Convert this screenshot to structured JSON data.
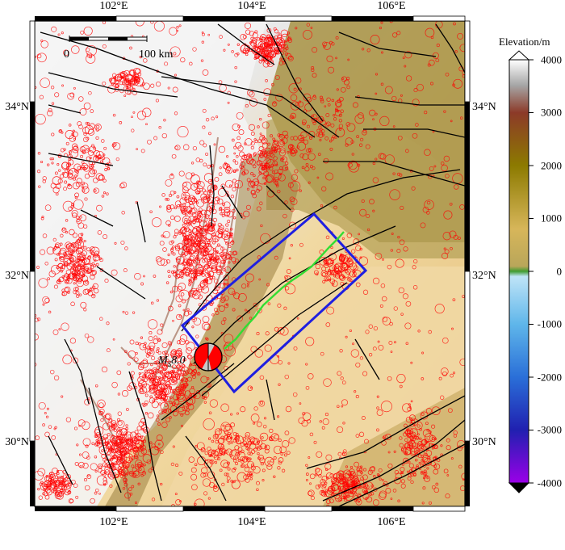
{
  "map": {
    "lon_labels": [
      "102°E",
      "104°E",
      "106°E"
    ],
    "lat_labels": [
      "34°N",
      "32°N",
      "30°N"
    ],
    "scale_bar": {
      "start": "0",
      "end": "100 km"
    },
    "event_label": {
      "prefix": "M",
      "subscript": "S",
      "value": "8.0"
    }
  },
  "colorbar": {
    "title": "Elevation/m",
    "ticks": [
      "4000",
      "3000",
      "2000",
      "1000",
      "0",
      "-1000",
      "-2000",
      "-3000",
      "-4000"
    ],
    "colors": {
      "white": "#ffffff",
      "grey": "#a6a6a6",
      "brown": "#8c3a28",
      "olive": "#8c7a00",
      "tan": "#d7b65a",
      "green": "#3f9c30",
      "lightblue": "#bfe4f7",
      "blue": "#2a6fd8",
      "navy": "#2020b0",
      "purple": "#9b00e8"
    }
  },
  "colors": {
    "seismicity": "#ff0000",
    "faults": "#000000",
    "study_box": "#1f1fe0",
    "rupture_trace": "#33dd33"
  }
}
